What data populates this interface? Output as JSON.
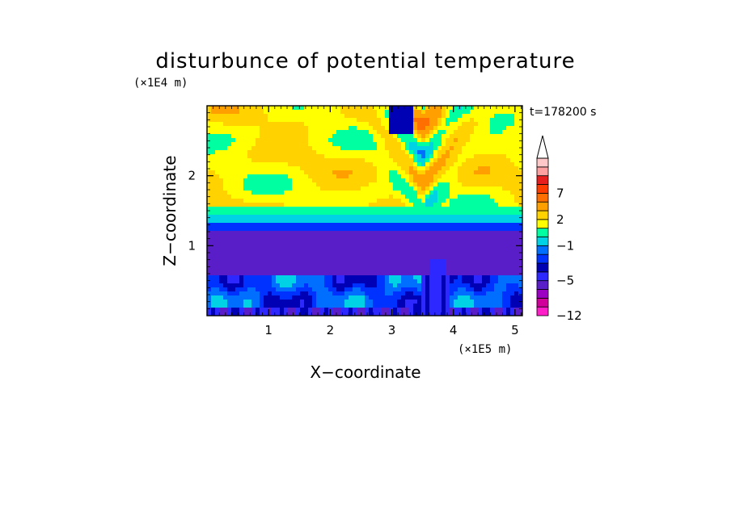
{
  "chart_data": {
    "type": "contour",
    "title": "disturbunce of potential temperature",
    "time_label": "t=178200 s",
    "xlabel": "X−coordinate",
    "ylabel": "Z−coordinate",
    "x_unit": "(×1E5 m)",
    "y_unit": "(×1E4 m)",
    "xlim": [
      0,
      5.12
    ],
    "ylim": [
      0,
      3.0
    ],
    "x_ticks": [
      1,
      2,
      3,
      4,
      5
    ],
    "x_tick_labels": [
      "1",
      "2",
      "3",
      "4",
      "5"
    ],
    "y_ticks": [
      1,
      2
    ],
    "y_tick_labels": [
      "1",
      "2"
    ],
    "colorbar": {
      "levels": [
        -12,
        -10,
        -8,
        -6,
        -5,
        -4,
        -3,
        -2,
        -1,
        0,
        1,
        2,
        3,
        5,
        7,
        8,
        9,
        10
      ],
      "labeled_levels": [
        -12,
        -5,
        -1,
        2,
        7
      ],
      "labels": [
        "−12",
        "−5",
        "−1",
        "2",
        "7"
      ],
      "colors": [
        "#ff1ec8",
        "#d2009b",
        "#9b00c3",
        "#5a1ec8",
        "#2d28ff",
        "#0000b4",
        "#0032ff",
        "#006eff",
        "#00d2e6",
        "#00ffa0",
        "#ffff00",
        "#ffd200",
        "#ffa000",
        "#ff6e00",
        "#ff3c00",
        "#e61e1e",
        "#ffa0a0",
        "#ffc8c8"
      ],
      "extend": "max"
    },
    "field_structure": {
      "upper_layer_z": [
        1.55,
        3.0
      ],
      "upper_layer_value_range": [
        1,
        3
      ],
      "inversion_band_z": [
        1.2,
        1.55
      ],
      "stable_core_z": [
        0.6,
        1.2
      ],
      "stable_core_value": -5,
      "lower_layer_z": [
        0,
        0.6
      ],
      "lower_layer_value_range": [
        -6,
        0
      ]
    }
  }
}
